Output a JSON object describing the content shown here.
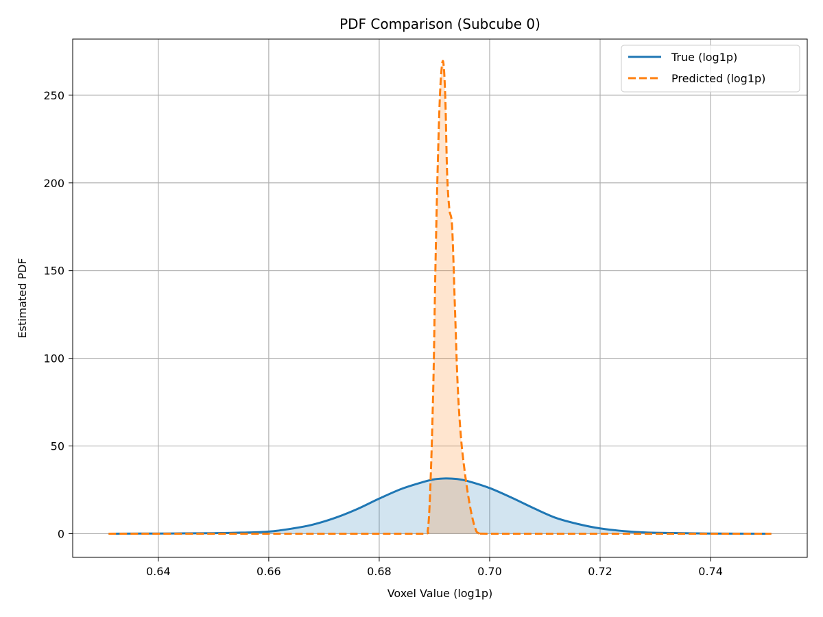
{
  "chart_data": {
    "type": "line",
    "title": "PDF Comparison (Subcube 0)",
    "xlabel": "Voxel Value (log1p)",
    "ylabel": "Estimated PDF",
    "xlim": [
      0.6245,
      0.7575
    ],
    "ylim": [
      -13.5,
      282
    ],
    "xticks": [
      0.64,
      0.66,
      0.68,
      0.7,
      0.72,
      0.74
    ],
    "xtick_labels": [
      "0.64",
      "0.66",
      "0.68",
      "0.70",
      "0.72",
      "0.74"
    ],
    "yticks": [
      0,
      50,
      100,
      150,
      200,
      250
    ],
    "ytick_labels": [
      "0",
      "50",
      "100",
      "150",
      "200",
      "250"
    ],
    "grid": true,
    "legend_position": "top-right",
    "series": [
      {
        "name": "True (log1p)",
        "color": "#1f77b4",
        "line_style": "solid",
        "fill_color": "#1f77b4",
        "x": [
          0.631,
          0.64,
          0.65,
          0.655,
          0.66,
          0.664,
          0.668,
          0.672,
          0.676,
          0.68,
          0.684,
          0.688,
          0.69,
          0.692,
          0.694,
          0.696,
          0.7,
          0.704,
          0.708,
          0.712,
          0.716,
          0.72,
          0.725,
          0.73,
          0.74,
          0.751
        ],
        "y": [
          0.0,
          0.1,
          0.3,
          0.6,
          1.2,
          2.8,
          5.2,
          9.0,
          14.0,
          20.0,
          25.5,
          29.5,
          31.0,
          31.5,
          31.2,
          30.0,
          26.0,
          20.5,
          14.5,
          9.0,
          5.5,
          3.0,
          1.3,
          0.5,
          0.1,
          0.0
        ]
      },
      {
        "name": "Predicted (log1p)",
        "color": "#ff7f0e",
        "line_style": "dashed",
        "fill_color": "#ff7f0e",
        "x": [
          0.631,
          0.68,
          0.688,
          0.6888,
          0.6893,
          0.6898,
          0.6902,
          0.6906,
          0.691,
          0.6914,
          0.6917,
          0.692,
          0.6923,
          0.6927,
          0.6932,
          0.6937,
          0.6942,
          0.6948,
          0.6955,
          0.6962,
          0.6968,
          0.6974,
          0.698,
          0.7,
          0.72,
          0.751
        ],
        "y": [
          0.0,
          0.0,
          0.0,
          2.0,
          30.0,
          85.0,
          155.0,
          210.0,
          250.0,
          268.0,
          266.0,
          245.0,
          205.0,
          185.0,
          175.0,
          130.0,
          85.0,
          55.0,
          35.0,
          20.0,
          10.0,
          3.0,
          0.3,
          0.0,
          0.0,
          0.0
        ]
      }
    ]
  }
}
